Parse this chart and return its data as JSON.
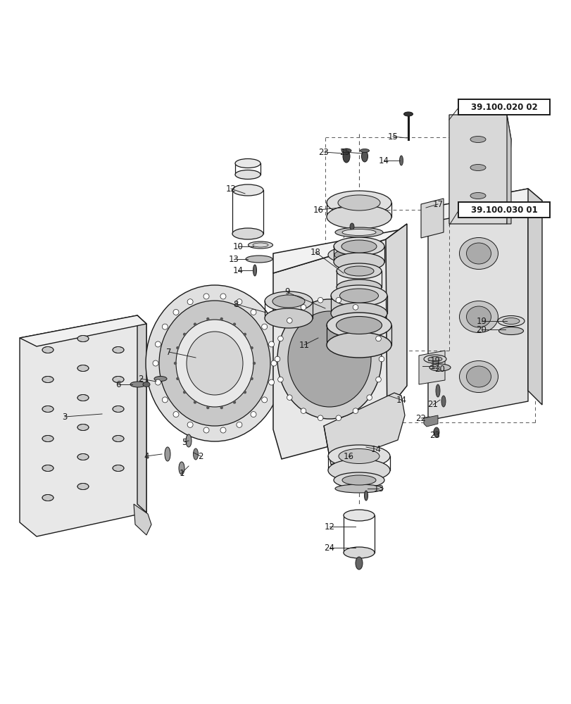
{
  "background_color": "#ffffff",
  "line_color": "#1a1a1a",
  "label_color": "#1a1a1a",
  "ref_box1": "39.100.020 02",
  "ref_box2": "39.100.030 01",
  "figsize": [
    8.12,
    10.0
  ],
  "dpi": 100
}
